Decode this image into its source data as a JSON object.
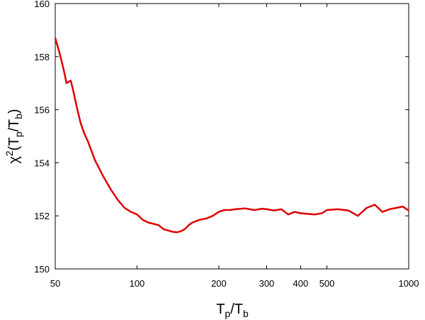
{
  "chart_data": {
    "type": "line",
    "title": "",
    "xlabel": {
      "base": "T",
      "sub1": "p",
      "sep": "/",
      "base2": "T",
      "sub2": "b"
    },
    "ylabel": {
      "chi": "χ",
      "sup": "2",
      "open": "(",
      "base": "T",
      "sub1": "p",
      "sep": "/",
      "base2": "T",
      "sub2": "b",
      "close": ")"
    },
    "x_scale": "log",
    "xlim": [
      50,
      1000
    ],
    "ylim": [
      150,
      160
    ],
    "xticks": [
      50,
      100,
      200,
      300,
      400,
      500,
      1000
    ],
    "xtick_labels": [
      "50",
      "100",
      "200",
      "300",
      "400",
      "500",
      "1000"
    ],
    "yticks": [
      150,
      152,
      154,
      156,
      158,
      160
    ],
    "ytick_labels": [
      "150",
      "152",
      "154",
      "156",
      "158",
      "160"
    ],
    "grid": false,
    "legend": "none",
    "series": [
      {
        "color": "#dd0000",
        "x": [
          50,
          52,
          54,
          55,
          56,
          57,
          58,
          60,
          62,
          64,
          66,
          70,
          75,
          80,
          85,
          90,
          95,
          100,
          105,
          110,
          115,
          120,
          125,
          130,
          135,
          140,
          145,
          150,
          155,
          160,
          170,
          180,
          190,
          200,
          210,
          220,
          230,
          250,
          270,
          290,
          300,
          320,
          340,
          360,
          380,
          400,
          420,
          450,
          480,
          500,
          550,
          600,
          650,
          700,
          750,
          800,
          850,
          900,
          950,
          1000
        ],
        "y": [
          158.7,
          158.1,
          157.4,
          157.0,
          157.05,
          157.1,
          156.8,
          156.1,
          155.5,
          155.1,
          154.8,
          154.1,
          153.5,
          153.0,
          152.6,
          152.3,
          152.15,
          152.05,
          151.85,
          151.75,
          151.7,
          151.65,
          151.5,
          151.45,
          151.4,
          151.38,
          151.42,
          151.5,
          151.65,
          151.75,
          151.85,
          151.9,
          152.0,
          152.15,
          152.22,
          152.22,
          152.25,
          152.28,
          152.22,
          152.27,
          152.25,
          152.2,
          152.25,
          152.05,
          152.15,
          152.1,
          152.08,
          152.05,
          152.1,
          152.22,
          152.25,
          152.2,
          152.0,
          152.3,
          152.42,
          152.15,
          152.25,
          152.3,
          152.35,
          152.2
        ]
      }
    ]
  }
}
